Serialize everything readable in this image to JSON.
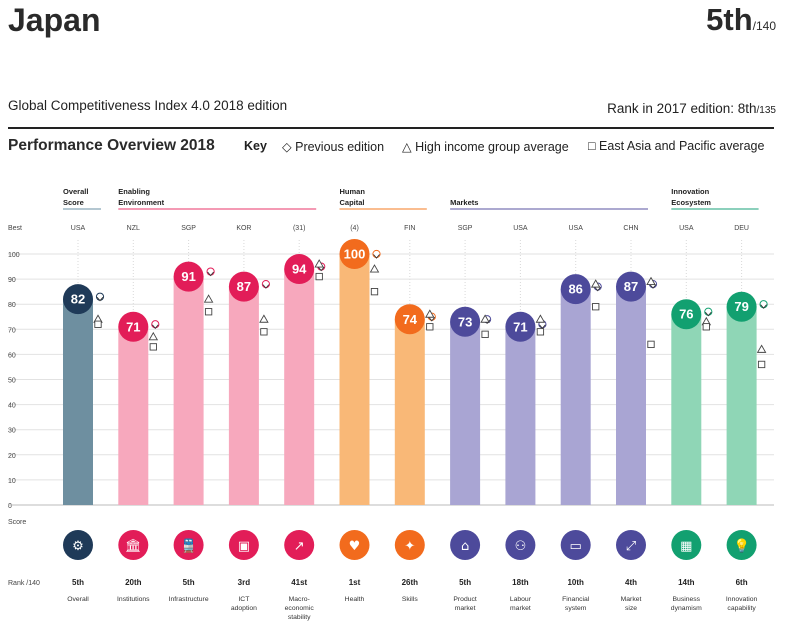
{
  "header": {
    "country": "Japan",
    "rank": "5th",
    "rank_total": "/140",
    "edition": "Global Competitiveness Index 4.0 2018 edition",
    "prev_rank_label": "Rank in 2017 edition: ",
    "prev_rank": "8th",
    "prev_rank_total": "/135",
    "overview_title": "Performance Overview 2018",
    "key_label": "Key"
  },
  "legend": {
    "previous": "Previous edition",
    "high_income": "High income group average",
    "east_asia": "East Asia and Pacific average",
    "previous_symbol": "◇",
    "high_income_symbol": "△",
    "east_asia_symbol": "□"
  },
  "chart_data": {
    "type": "bar",
    "title": "Performance Overview 2018",
    "ylabel": "Score",
    "ylim": [
      0,
      100
    ],
    "yticks": [
      0,
      10,
      20,
      30,
      40,
      50,
      60,
      70,
      80,
      90,
      100
    ],
    "best_label": "Best",
    "score_label": "Score",
    "rank_label": "Rank /140",
    "groups": [
      {
        "label": "Overall Score",
        "lines": [
          "Overall",
          "Score"
        ],
        "color": "#6a8fa3",
        "pillars": [
          0
        ]
      },
      {
        "label": "Enabling Environment",
        "lines": [
          "Enabling",
          "Environment"
        ],
        "color": "#e8366a",
        "pillars": [
          1,
          2,
          3,
          4
        ]
      },
      {
        "label": "Human Capital",
        "lines": [
          "Human",
          "Capital"
        ],
        "color": "#f47b20",
        "pillars": [
          5,
          6
        ]
      },
      {
        "label": "Markets",
        "lines": [
          "Markets"
        ],
        "color": "#5a53a0",
        "pillars": [
          7,
          8,
          9,
          10
        ]
      },
      {
        "label": "Innovation Ecosystem",
        "lines": [
          "Innovation",
          "Ecosystem"
        ],
        "color": "#1aa27a",
        "pillars": [
          11,
          12
        ]
      }
    ],
    "series": [
      {
        "name": "Japan",
        "values": [
          82,
          71,
          91,
          87,
          94,
          100,
          74,
          73,
          71,
          86,
          87,
          76,
          79
        ]
      },
      {
        "name": "Previous edition",
        "values": [
          83,
          72,
          93,
          88,
          95,
          100,
          75,
          74,
          72,
          87,
          88,
          77,
          80
        ]
      },
      {
        "name": "High income group average",
        "values": [
          74,
          67,
          82,
          74,
          96,
          94,
          76,
          74,
          74,
          88,
          89,
          73,
          62
        ]
      },
      {
        "name": "East Asia and Pacific average",
        "values": [
          72,
          63,
          77,
          69,
          91,
          85,
          71,
          68,
          69,
          79,
          64,
          71,
          56
        ]
      }
    ],
    "pillars": [
      {
        "best": "USA",
        "name": "Overall",
        "lines": [
          "Overall"
        ],
        "rank": "5th",
        "bar": "#6e8fa0",
        "circle": "#1f3a58",
        "icon": "gear-icon",
        "glyph": "⚙"
      },
      {
        "best": "NZL",
        "name": "Institutions",
        "lines": [
          "Institutions"
        ],
        "rank": "20th",
        "bar": "#f7a8bd",
        "circle": "#e21d58",
        "icon": "institution-icon",
        "glyph": "🏛"
      },
      {
        "best": "SGP",
        "name": "Infrastructure",
        "lines": [
          "Infrastructure"
        ],
        "rank": "5th",
        "bar": "#f7a8bd",
        "circle": "#e21d58",
        "icon": "train-icon",
        "glyph": "🚆"
      },
      {
        "best": "KOR",
        "name": "ICT adoption",
        "lines": [
          "ICT",
          "adoption"
        ],
        "rank": "3rd",
        "bar": "#f7a8bd",
        "circle": "#e21d58",
        "icon": "chip-icon",
        "glyph": "▣"
      },
      {
        "best": "(31)",
        "name": "Macro-economic stability",
        "lines": [
          "Macro-",
          "economic",
          "stability"
        ],
        "rank": "41st",
        "bar": "#f7a8bd",
        "circle": "#e21d58",
        "icon": "trend-icon",
        "glyph": "↗"
      },
      {
        "best": "(4)",
        "name": "Health",
        "lines": [
          "Health"
        ],
        "rank": "1st",
        "bar": "#f9b877",
        "circle": "#f26b1d",
        "icon": "heart-icon",
        "glyph": "♥"
      },
      {
        "best": "FIN",
        "name": "Skills",
        "lines": [
          "Skills"
        ],
        "rank": "26th",
        "bar": "#f9b877",
        "circle": "#f26b1d",
        "icon": "skills-icon",
        "glyph": "✦"
      },
      {
        "best": "SGP",
        "name": "Product market",
        "lines": [
          "Product",
          "market"
        ],
        "rank": "5th",
        "bar": "#a9a5d3",
        "circle": "#4d4a9b",
        "icon": "tag-icon",
        "glyph": "⌂"
      },
      {
        "best": "USA",
        "name": "Labour market",
        "lines": [
          "Labour",
          "market"
        ],
        "rank": "18th",
        "bar": "#a9a5d3",
        "circle": "#4d4a9b",
        "icon": "people-icon",
        "glyph": "⚇"
      },
      {
        "best": "USA",
        "name": "Financial system",
        "lines": [
          "Financial",
          "system"
        ],
        "rank": "10th",
        "bar": "#a9a5d3",
        "circle": "#4d4a9b",
        "icon": "card-icon",
        "glyph": "▭"
      },
      {
        "best": "CHN",
        "name": "Market size",
        "lines": [
          "Market",
          "size"
        ],
        "rank": "4th",
        "bar": "#a9a5d3",
        "circle": "#4d4a9b",
        "icon": "expand-icon",
        "glyph": "⤢"
      },
      {
        "best": "USA",
        "name": "Business dynamism",
        "lines": [
          "Business",
          "dynamism"
        ],
        "rank": "14th",
        "bar": "#8fd6b6",
        "circle": "#12a070",
        "icon": "chart-icon",
        "glyph": "▦"
      },
      {
        "best": "DEU",
        "name": "Innovation capability",
        "lines": [
          "Innovation",
          "capability"
        ],
        "rank": "6th",
        "bar": "#8fd6b6",
        "circle": "#12a070",
        "icon": "bulb-icon",
        "glyph": "💡"
      }
    ]
  }
}
